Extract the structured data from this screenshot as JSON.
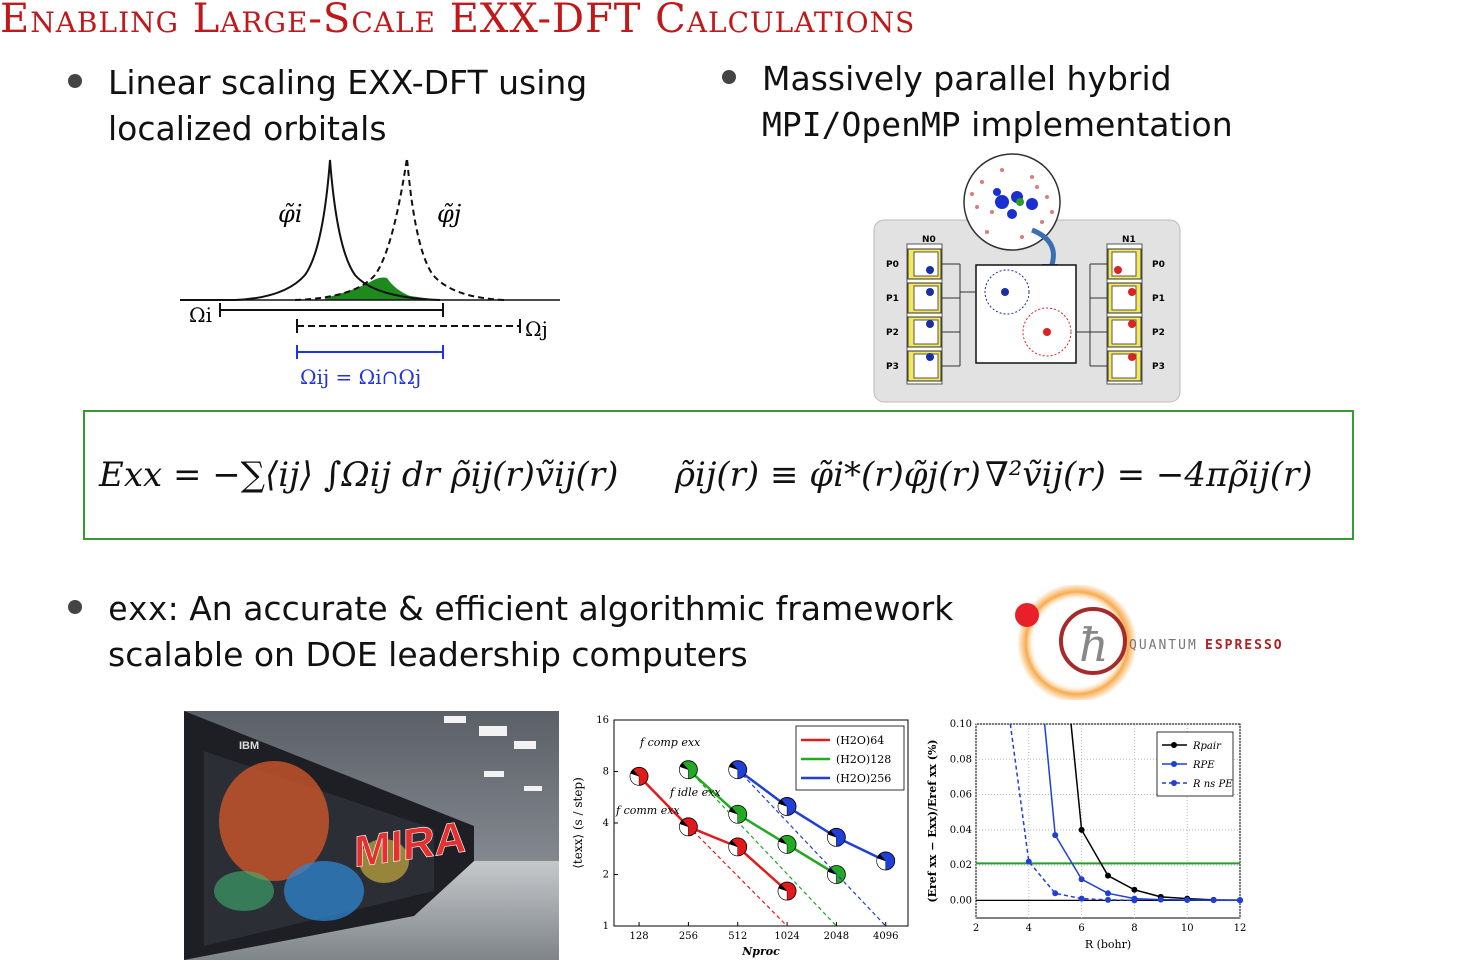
{
  "title": "Enabling Large-Scale EXX-DFT Calculations",
  "bullets": {
    "b1_line1": "Linear scaling EXX-DFT using",
    "b1_line2": "localized orbitals",
    "b2_line1": "Massively parallel hybrid",
    "b2_mpi": "MPI/OpenMP",
    "b2_line2_rest": " implementation",
    "b3_code": "exx",
    "b3_line1_rest": ": An accurate & efficient algorithmic framework",
    "b3_line2": "scalable on DOE leadership computers"
  },
  "diagram": {
    "phi_i": "φ̃i",
    "phi_j": "φ̃j",
    "omega_i": "Ωi",
    "omega_j": "Ωj",
    "omega_ij": "Ωij = Ωi∩Ωj"
  },
  "equations": {
    "eq1": "Exx = −∑⟨ij⟩ ∫Ωij dr ρ̃ij(r)ṽij(r)",
    "eq2": "ρ̃ij(r) ≡ φ̃i*(r)φ̃j(r)",
    "eq3": "∇²ṽij(r) = −4πρ̃ij(r)"
  },
  "mpi_diagram": {
    "node0": "N0",
    "node1": "N1",
    "procs": [
      "P0",
      "P1",
      "P2",
      "P3"
    ]
  },
  "photo": {
    "brand": "IBM",
    "mira": "MIRA"
  },
  "logo": {
    "text_a": "QUANTUM",
    "text_b": "ESPRESSO",
    "glyph": "ħ"
  },
  "chart_data": [
    {
      "type": "line",
      "title": "",
      "xlabel": "Nproc",
      "ylabel": "⟨texx⟩ (s / step)",
      "log_x": true,
      "log_y": true,
      "x_ticks": [
        "128",
        "256",
        "512",
        "1024",
        "2048",
        "4096"
      ],
      "y_ticks": [
        "1",
        "2",
        "4",
        "8",
        "16"
      ],
      "ylim": [
        1,
        16
      ],
      "legend_position": "top-right",
      "annotations": [
        "f comp exx",
        "f idle exx",
        "f comm exx"
      ],
      "series": [
        {
          "name": "(H2O)64",
          "color": "#e31a1c",
          "x": [
            128,
            256,
            512,
            1024
          ],
          "y": [
            7.5,
            3.8,
            2.9,
            1.6
          ],
          "ideal_end": [
            1024,
            1.0
          ]
        },
        {
          "name": "(H2O)128",
          "color": "#22aa22",
          "x": [
            256,
            512,
            1024,
            2048
          ],
          "y": [
            8.2,
            4.5,
            3.0,
            2.0
          ],
          "ideal_end": [
            2048,
            1.0
          ]
        },
        {
          "name": "(H2O)256",
          "color": "#1f3fd6",
          "x": [
            512,
            1024,
            2048,
            4096
          ],
          "y": [
            8.2,
            5.0,
            3.3,
            2.4
          ],
          "ideal_end": [
            4096,
            1.0
          ]
        }
      ]
    },
    {
      "type": "line",
      "title": "",
      "xlabel": "R (bohr)",
      "ylabel": "(Eref xx − Exx)/Eref xx (%)",
      "xlim": [
        2,
        12
      ],
      "ylim": [
        -0.01,
        0.1
      ],
      "x_ticks": [
        "2",
        "4",
        "6",
        "8",
        "10",
        "12"
      ],
      "y_ticks": [
        "0.00",
        "0.02",
        "0.04",
        "0.06",
        "0.08",
        "0.10"
      ],
      "threshold_line": 0.021,
      "legend_position": "top-right",
      "series": [
        {
          "name": "Rpair",
          "color": "#000000",
          "style": "solid",
          "x": [
            6,
            7,
            8,
            9,
            10,
            11,
            12
          ],
          "y": [
            0.04,
            0.014,
            0.006,
            0.002,
            0.001,
            0.0003,
            0.0001
          ],
          "lead_x": 5.6
        },
        {
          "name": "RPE",
          "color": "#1f3fd6",
          "style": "solid",
          "x": [
            5,
            6,
            7,
            8,
            9,
            10,
            11,
            12
          ],
          "y": [
            0.037,
            0.012,
            0.004,
            0.001,
            0.0004,
            0.0002,
            0.0001,
            0.0
          ],
          "lead_x": 4.6
        },
        {
          "name": "R ns PE",
          "color": "#1f3fd6",
          "style": "dashed",
          "x": [
            4,
            5,
            6,
            7,
            8
          ],
          "y": [
            0.022,
            0.004,
            0.001,
            0.0003,
            0.0
          ],
          "lead_x": 3.3
        }
      ]
    }
  ]
}
